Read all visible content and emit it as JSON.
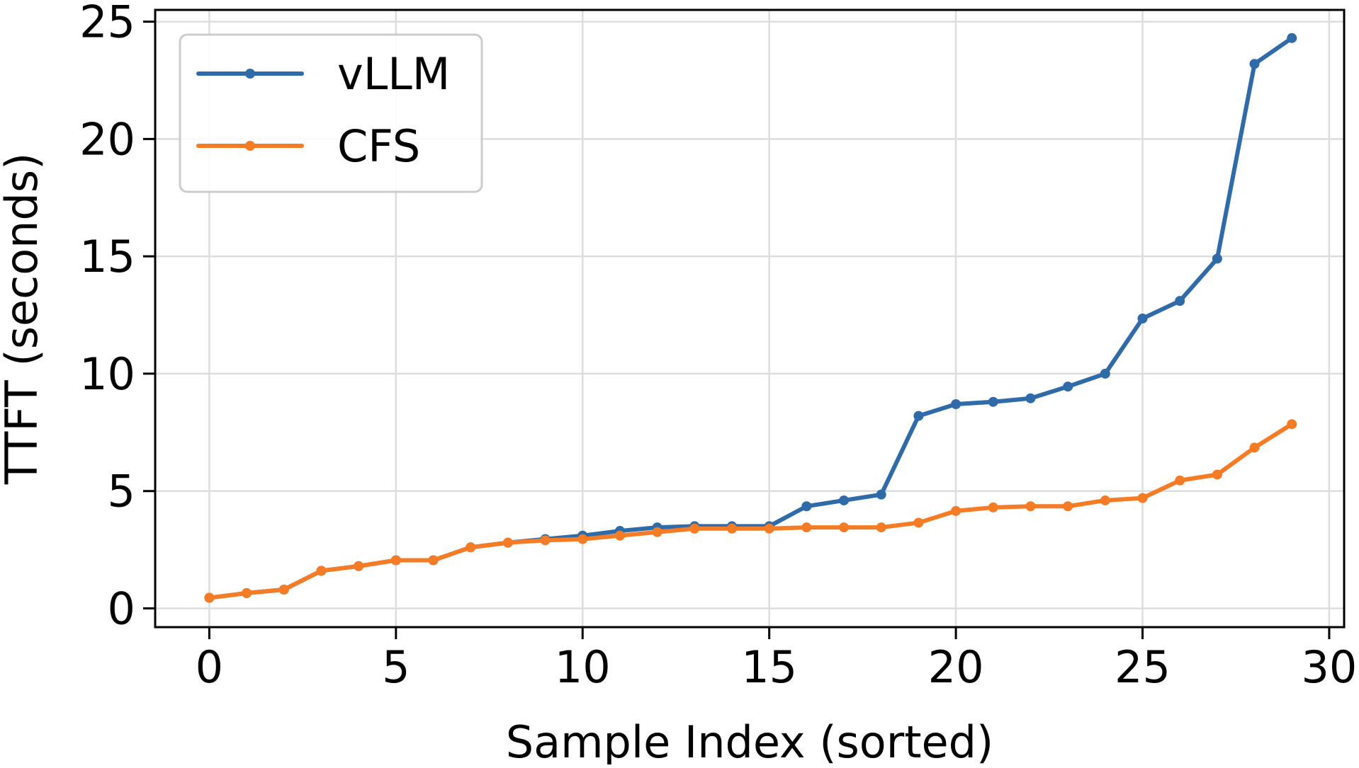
{
  "chart_data": {
    "type": "line",
    "title": "",
    "xlabel": "Sample Index (sorted)",
    "ylabel": "TTFT (seconds)",
    "xlim": [
      -1.45,
      30.4
    ],
    "ylim": [
      -0.8,
      25.5
    ],
    "xticks": [
      0,
      5,
      10,
      15,
      20,
      25,
      30
    ],
    "yticks": [
      0,
      5,
      10,
      15,
      20,
      25
    ],
    "xtick_labels": [
      "0",
      "5",
      "10",
      "15",
      "20",
      "25",
      "30"
    ],
    "ytick_labels": [
      "0",
      "5",
      "10",
      "15",
      "20",
      "25"
    ],
    "grid": true,
    "legend_position": "top-left",
    "x": [
      0,
      1,
      2,
      3,
      4,
      5,
      6,
      7,
      8,
      9,
      10,
      11,
      12,
      13,
      14,
      15,
      16,
      17,
      18,
      19,
      20,
      21,
      22,
      23,
      24,
      25,
      26,
      27,
      28,
      29
    ],
    "series": [
      {
        "name": "vLLM",
        "color": "#2f6aa9",
        "values": [
          0.45,
          0.65,
          0.8,
          1.6,
          1.8,
          2.05,
          2.05,
          2.6,
          2.8,
          2.95,
          3.1,
          3.3,
          3.45,
          3.5,
          3.5,
          3.5,
          4.35,
          4.6,
          4.85,
          8.2,
          8.7,
          8.8,
          8.95,
          9.45,
          10.0,
          12.35,
          13.1,
          14.9,
          23.2,
          24.3
        ]
      },
      {
        "name": "CFS",
        "color": "#f57c24",
        "values": [
          0.45,
          0.65,
          0.8,
          1.6,
          1.8,
          2.05,
          2.05,
          2.6,
          2.8,
          2.9,
          2.95,
          3.1,
          3.25,
          3.4,
          3.4,
          3.4,
          3.45,
          3.45,
          3.45,
          3.65,
          4.15,
          4.3,
          4.35,
          4.35,
          4.6,
          4.7,
          5.45,
          5.7,
          6.85,
          7.85
        ]
      }
    ]
  }
}
